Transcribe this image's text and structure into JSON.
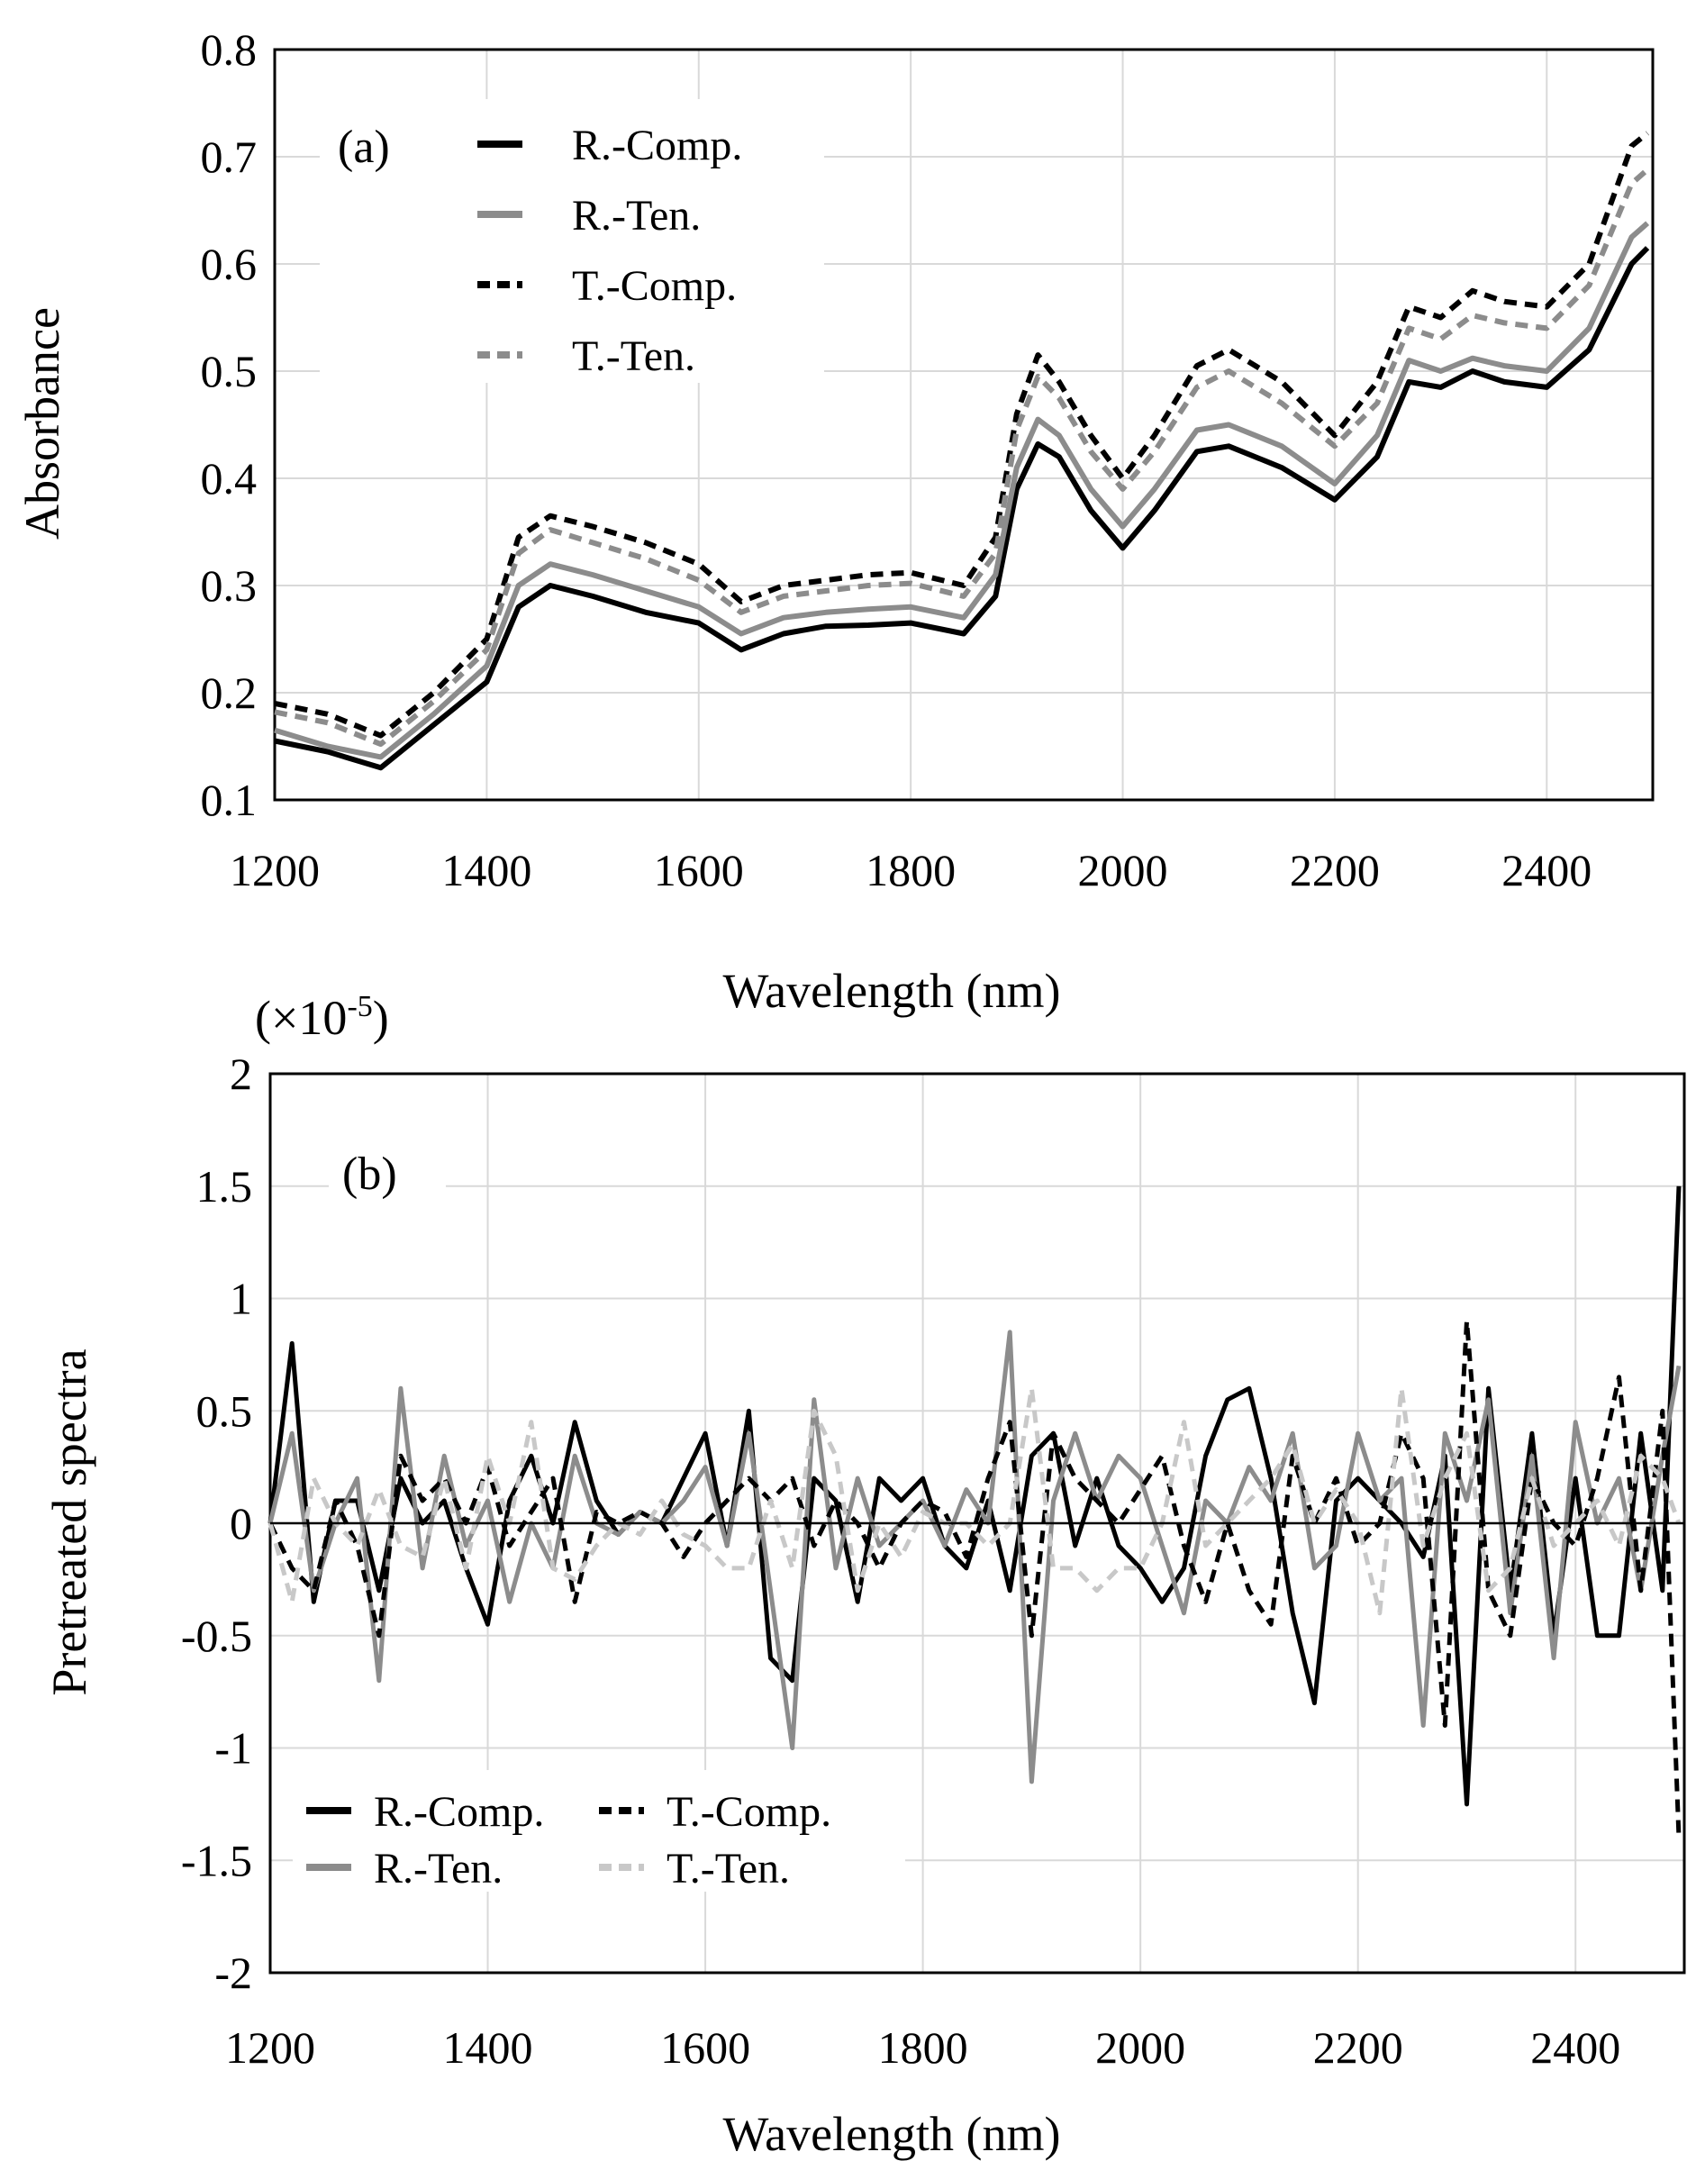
{
  "chart_data": [
    {
      "type": "line",
      "panel_label": "(a)",
      "xlabel": "Wavelength  (nm)",
      "ylabel": "Absorbance",
      "xlim": [
        1200,
        2500
      ],
      "ylim": [
        0.1,
        0.8
      ],
      "xticks": [
        1200,
        1400,
        1600,
        1800,
        2000,
        2200,
        2400
      ],
      "yticks": [
        "0.1",
        "0.2",
        "0.3",
        "0.4",
        "0.5",
        "0.6",
        "0.7",
        "0.8"
      ],
      "grid": true,
      "legend_position": "top-left",
      "x": [
        1200,
        1250,
        1300,
        1350,
        1400,
        1430,
        1460,
        1500,
        1550,
        1600,
        1640,
        1680,
        1720,
        1760,
        1800,
        1850,
        1880,
        1900,
        1920,
        1940,
        1970,
        2000,
        2030,
        2070,
        2100,
        2150,
        2200,
        2240,
        2270,
        2300,
        2330,
        2360,
        2400,
        2440,
        2480,
        2495
      ],
      "series": [
        {
          "name": "R.-Comp.",
          "color": "#000000",
          "dash": "solid",
          "values": [
            0.155,
            0.145,
            0.13,
            0.17,
            0.21,
            0.28,
            0.3,
            0.29,
            0.275,
            0.265,
            0.24,
            0.255,
            0.262,
            0.263,
            0.265,
            0.255,
            0.29,
            0.39,
            0.432,
            0.42,
            0.37,
            0.335,
            0.37,
            0.425,
            0.43,
            0.41,
            0.38,
            0.42,
            0.49,
            0.485,
            0.5,
            0.49,
            0.485,
            0.52,
            0.6,
            0.615
          ]
        },
        {
          "name": "R.-Ten.",
          "color": "#8c8c8c",
          "dash": "solid",
          "values": [
            0.165,
            0.15,
            0.14,
            0.18,
            0.225,
            0.3,
            0.32,
            0.31,
            0.295,
            0.28,
            0.255,
            0.27,
            0.275,
            0.278,
            0.28,
            0.27,
            0.31,
            0.41,
            0.455,
            0.44,
            0.39,
            0.355,
            0.39,
            0.445,
            0.45,
            0.43,
            0.395,
            0.44,
            0.51,
            0.5,
            0.512,
            0.505,
            0.5,
            0.54,
            0.625,
            0.638
          ]
        },
        {
          "name": "T.-Comp.",
          "color": "#000000",
          "dash": "dashed",
          "values": [
            0.19,
            0.18,
            0.16,
            0.2,
            0.25,
            0.345,
            0.365,
            0.355,
            0.34,
            0.32,
            0.285,
            0.3,
            0.305,
            0.31,
            0.312,
            0.3,
            0.345,
            0.46,
            0.515,
            0.49,
            0.44,
            0.4,
            0.44,
            0.505,
            0.52,
            0.49,
            0.44,
            0.49,
            0.56,
            0.55,
            0.575,
            0.565,
            0.56,
            0.6,
            0.71,
            0.722
          ]
        },
        {
          "name": "T.-Ten.",
          "color": "#8c8c8c",
          "dash": "dashed",
          "values": [
            0.182,
            0.172,
            0.152,
            0.192,
            0.24,
            0.33,
            0.352,
            0.34,
            0.325,
            0.305,
            0.275,
            0.29,
            0.295,
            0.3,
            0.302,
            0.29,
            0.33,
            0.445,
            0.495,
            0.475,
            0.425,
            0.39,
            0.425,
            0.485,
            0.5,
            0.47,
            0.43,
            0.47,
            0.54,
            0.53,
            0.552,
            0.545,
            0.54,
            0.58,
            0.675,
            0.688
          ]
        }
      ]
    },
    {
      "type": "line",
      "panel_label": "(b)",
      "scale_note_prefix": "(×10",
      "scale_note_exp": "-5",
      "scale_note_suffix": ")",
      "xlabel": "Wavelength  (nm)",
      "ylabel": "Pretreated spectra",
      "xlim": [
        1200,
        2500
      ],
      "ylim": [
        -2,
        2
      ],
      "xticks": [
        1200,
        1400,
        1600,
        1800,
        2000,
        2200,
        2400
      ],
      "yticks": [
        "-2",
        "-1.5",
        "-1",
        "-0.5",
        "0",
        "0.5",
        "1",
        "1.5",
        "2"
      ],
      "grid": true,
      "legend_position": "bottom-left",
      "x": [
        1200,
        1220,
        1240,
        1260,
        1280,
        1300,
        1320,
        1340,
        1360,
        1380,
        1400,
        1420,
        1440,
        1460,
        1480,
        1500,
        1520,
        1540,
        1560,
        1580,
        1600,
        1620,
        1640,
        1660,
        1680,
        1700,
        1720,
        1740,
        1760,
        1780,
        1800,
        1820,
        1840,
        1860,
        1880,
        1900,
        1920,
        1940,
        1960,
        1980,
        2000,
        2020,
        2040,
        2060,
        2080,
        2100,
        2120,
        2140,
        2160,
        2180,
        2200,
        2220,
        2240,
        2260,
        2280,
        2300,
        2320,
        2340,
        2360,
        2380,
        2400,
        2420,
        2440,
        2460,
        2480,
        2495
      ],
      "series": [
        {
          "name": "R.-Comp.",
          "color": "#000000",
          "dash": "solid",
          "values": [
            0.0,
            0.8,
            -0.35,
            0.1,
            0.1,
            -0.3,
            0.2,
            0.0,
            0.1,
            -0.2,
            -0.45,
            0.1,
            0.3,
            0.0,
            0.45,
            0.1,
            -0.05,
            0.05,
            0.0,
            0.2,
            0.4,
            -0.1,
            0.5,
            -0.6,
            -0.7,
            0.2,
            0.1,
            -0.35,
            0.2,
            0.1,
            0.2,
            -0.1,
            -0.2,
            0.1,
            -0.3,
            0.3,
            0.4,
            -0.1,
            0.2,
            -0.1,
            -0.2,
            -0.35,
            -0.2,
            0.3,
            0.55,
            0.6,
            0.2,
            -0.4,
            -0.8,
            0.1,
            0.2,
            0.1,
            0.0,
            -0.15,
            0.3,
            -1.25,
            0.6,
            -0.3,
            0.4,
            -0.5,
            0.2,
            -0.5,
            -0.5,
            0.4,
            -0.3,
            1.5
          ]
        },
        {
          "name": "R.-Ten.",
          "color": "#8c8c8c",
          "dash": "solid",
          "values": [
            0.0,
            0.4,
            -0.3,
            0.0,
            0.2,
            -0.7,
            0.6,
            -0.2,
            0.3,
            -0.1,
            0.1,
            -0.35,
            0.0,
            -0.2,
            0.3,
            0.0,
            -0.05,
            0.05,
            0.0,
            0.1,
            0.25,
            -0.1,
            0.4,
            -0.3,
            -1.0,
            0.55,
            -0.2,
            0.2,
            -0.1,
            0.0,
            0.1,
            -0.1,
            0.15,
            0.0,
            0.85,
            -1.15,
            0.1,
            0.4,
            0.1,
            0.3,
            0.2,
            -0.1,
            -0.4,
            0.1,
            0.0,
            0.25,
            0.1,
            0.4,
            -0.2,
            -0.1,
            0.4,
            0.1,
            0.2,
            -0.9,
            0.4,
            0.1,
            0.55,
            -0.4,
            0.3,
            -0.6,
            0.45,
            0.0,
            0.2,
            -0.3,
            0.3,
            0.7
          ]
        },
        {
          "name": "T.-Comp.",
          "color": "#000000",
          "dash": "dashed",
          "values": [
            0.0,
            -0.2,
            -0.3,
            0.1,
            -0.1,
            -0.5,
            0.3,
            0.1,
            0.2,
            0.0,
            0.25,
            -0.1,
            0.05,
            0.2,
            -0.35,
            0.05,
            0.0,
            0.05,
            0.0,
            -0.15,
            0.0,
            0.1,
            0.2,
            0.1,
            0.2,
            -0.1,
            0.1,
            0.0,
            -0.2,
            0.0,
            0.1,
            0.05,
            -0.15,
            0.2,
            0.45,
            -0.5,
            0.4,
            0.2,
            0.1,
            0.0,
            0.15,
            0.3,
            -0.1,
            -0.35,
            0.0,
            -0.3,
            -0.45,
            0.3,
            0.0,
            0.2,
            -0.1,
            0.0,
            0.4,
            0.2,
            -0.9,
            0.9,
            -0.3,
            -0.5,
            0.2,
            0.0,
            -0.1,
            0.2,
            0.65,
            -0.3,
            0.5,
            -1.4
          ]
        },
        {
          "name": "T.-Ten.",
          "color": "#c8c8c8",
          "dash": "dashed",
          "values": [
            0.0,
            -0.35,
            0.2,
            0.0,
            -0.1,
            0.15,
            -0.1,
            -0.15,
            0.2,
            -0.2,
            0.3,
            0.0,
            0.45,
            -0.2,
            -0.25,
            -0.1,
            0.0,
            -0.05,
            0.1,
            -0.05,
            -0.1,
            -0.2,
            -0.2,
            0.1,
            -0.2,
            0.5,
            0.3,
            -0.3,
            0.0,
            -0.15,
            0.05,
            0.0,
            0.0,
            -0.1,
            0.0,
            0.6,
            -0.2,
            -0.2,
            -0.3,
            -0.2,
            -0.2,
            0.0,
            0.45,
            -0.1,
            0.0,
            0.1,
            0.2,
            0.35,
            0.0,
            0.15,
            0.0,
            -0.4,
            0.6,
            -0.1,
            0.2,
            0.4,
            -0.3,
            -0.2,
            0.2,
            -0.1,
            0.0,
            0.1,
            -0.1,
            0.3,
            0.2,
            0.0
          ]
        }
      ]
    }
  ]
}
